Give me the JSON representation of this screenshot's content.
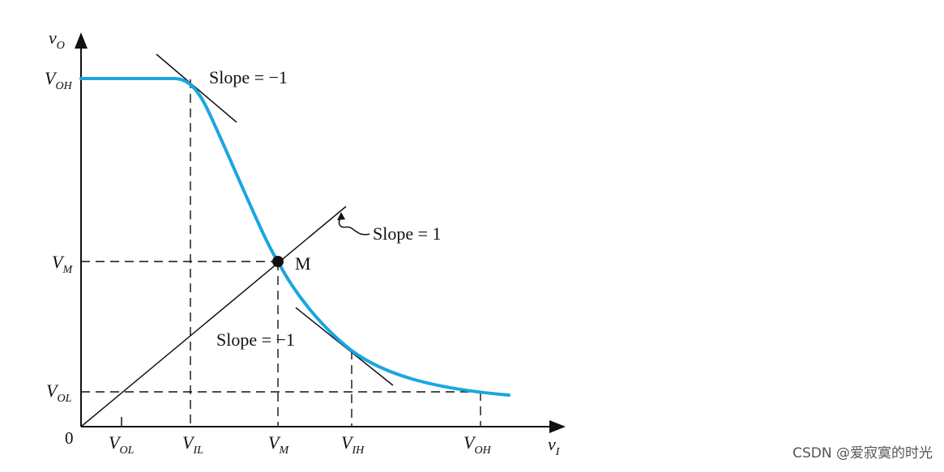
{
  "axes": {
    "y_label": {
      "main": "v",
      "sub": "O"
    },
    "x_label": {
      "main": "v",
      "sub": "I"
    },
    "origin_label": "0"
  },
  "y_ticks": [
    {
      "main": "V",
      "sub": "OH"
    },
    {
      "main": "V",
      "sub": "M"
    },
    {
      "main": "V",
      "sub": "OL"
    }
  ],
  "x_ticks": [
    {
      "main": "V",
      "sub": "OL"
    },
    {
      "main": "V",
      "sub": "IL"
    },
    {
      "main": "V",
      "sub": "M"
    },
    {
      "main": "V",
      "sub": "IH"
    },
    {
      "main": "V",
      "sub": "OH"
    }
  ],
  "annotations": {
    "slope_top": "Slope = −1",
    "slope_unity": "Slope = 1",
    "slope_bottom": "Slope = −1",
    "midpoint": "M"
  },
  "colors": {
    "curve": "#1aa6e0",
    "lines": "#111111"
  },
  "watermark": "CSDN @爱寂寞的时光"
}
